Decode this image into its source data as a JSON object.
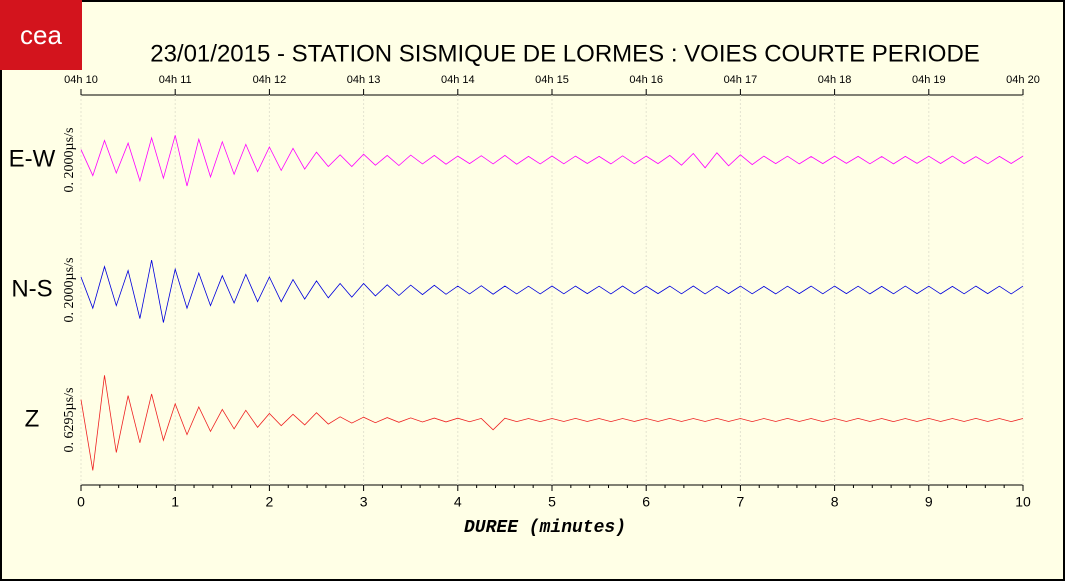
{
  "logo": "cea",
  "chart_data": {
    "type": "seismogram",
    "title": "23/01/2015  -  STATION SISMIQUE DE LORMES : VOIES COURTE PERIODE",
    "xlabel": "DUREE (minutes)",
    "xlim": [
      0,
      10
    ],
    "xticks": [
      0,
      1,
      2,
      3,
      4,
      5,
      6,
      7,
      8,
      9,
      10
    ],
    "x2ticks": [
      {
        "value": 0,
        "label": "04h 10"
      },
      {
        "value": 1,
        "label": "04h 11"
      },
      {
        "value": 2,
        "label": "04h 12"
      },
      {
        "value": 3,
        "label": "04h 13"
      },
      {
        "value": 4,
        "label": "04h 14"
      },
      {
        "value": 5,
        "label": "04h 15"
      },
      {
        "value": 6,
        "label": "04h 16"
      },
      {
        "value": 7,
        "label": "04h 17"
      },
      {
        "value": 8,
        "label": "04h 18"
      },
      {
        "value": 9,
        "label": "04h 19"
      },
      {
        "value": 10,
        "label": "04h 20"
      }
    ],
    "grid": true,
    "x": [
      0,
      0.125,
      0.25,
      0.375,
      0.5,
      0.625,
      0.75,
      0.875,
      1,
      1.125,
      1.25,
      1.375,
      1.5,
      1.625,
      1.75,
      1.875,
      2,
      2.125,
      2.25,
      2.375,
      2.5,
      2.625,
      2.75,
      2.875,
      3,
      3.125,
      3.25,
      3.375,
      3.5,
      3.625,
      3.75,
      3.875,
      4,
      4.125,
      4.25,
      4.375,
      4.5,
      4.625,
      4.75,
      4.875,
      5,
      5.125,
      5.25,
      5.375,
      5.5,
      5.625,
      5.75,
      5.875,
      6,
      6.125,
      6.25,
      6.375,
      6.5,
      6.625,
      6.75,
      6.875,
      7,
      7.125,
      7.25,
      7.375,
      7.5,
      7.625,
      7.75,
      7.875,
      8,
      8.125,
      8.25,
      8.375,
      8.5,
      8.625,
      8.75,
      8.875,
      9,
      9.125,
      9.25,
      9.375,
      9.5,
      9.625,
      9.75,
      9.875,
      10
    ],
    "series": [
      {
        "name": "E-W",
        "scale_label": "0. 2000µs/s",
        "color": "#ff00ff",
        "ylim": [
          -5000,
          5000
        ],
        "values": [
          800,
          -1200,
          1500,
          -1000,
          1300,
          -1600,
          1700,
          -1400,
          1900,
          -2000,
          1600,
          -1300,
          1400,
          -1100,
          1200,
          -900,
          1000,
          -800,
          900,
          -700,
          600,
          -500,
          400,
          -500,
          450,
          -400,
          350,
          -420,
          380,
          -300,
          350,
          -320,
          300,
          -280,
          330,
          -300,
          350,
          -320,
          280,
          -300,
          310,
          -290,
          300,
          -270,
          280,
          -300,
          320,
          -290,
          300,
          -280,
          350,
          -400,
          500,
          -600,
          550,
          -450,
          400,
          -350,
          300,
          -280,
          290,
          -300,
          270,
          -280,
          300,
          -260,
          280,
          -290,
          270,
          -300,
          280,
          -260,
          290,
          -270,
          300,
          -280,
          260,
          -290,
          280,
          -270,
          300
        ]
      },
      {
        "name": "N-S",
        "scale_label": "0. 2000µs/s",
        "color": "#0000dd",
        "ylim": [
          -5000,
          5000
        ],
        "values": [
          1000,
          -1400,
          1800,
          -1200,
          1500,
          -2200,
          2300,
          -2500,
          1600,
          -1400,
          1300,
          -1200,
          1100,
          -1000,
          1200,
          -900,
          1000,
          -900,
          800,
          -700,
          700,
          -600,
          500,
          -550,
          500,
          -450,
          400,
          -420,
          380,
          -350,
          360,
          -330,
          300,
          -300,
          330,
          -320,
          310,
          -300,
          290,
          -300,
          310,
          -290,
          300,
          -280,
          290,
          -300,
          310,
          -290,
          300,
          -280,
          300,
          -290,
          310,
          -300,
          290,
          -280,
          300,
          -290,
          280,
          -300,
          290,
          -280,
          300,
          -290,
          300,
          -280,
          290,
          -300,
          280,
          -290,
          300,
          -280,
          290,
          -300,
          280,
          -290,
          300,
          -280,
          290,
          -300,
          300
        ]
      },
      {
        "name": "Z",
        "scale_label": "0. 6295µs/s",
        "color": "#ee2222",
        "ylim": [
          -8000,
          8000
        ],
        "values": [
          2500,
          -6200,
          5500,
          -4000,
          3000,
          -2800,
          3200,
          -2500,
          2000,
          -1800,
          1600,
          -1400,
          1300,
          -1100,
          1200,
          -900,
          800,
          -700,
          700,
          -600,
          900,
          -500,
          400,
          -380,
          350,
          -330,
          300,
          -280,
          260,
          -250,
          240,
          -230,
          220,
          -210,
          200,
          -1200,
          220,
          -200,
          190,
          -200,
          190,
          -180,
          200,
          -190,
          180,
          -200,
          190,
          -180,
          190,
          -180,
          200,
          -190,
          180,
          -190,
          200,
          -180,
          190,
          -200,
          180,
          -190,
          200,
          -180,
          190,
          -200,
          180,
          -190,
          200,
          -180,
          190,
          -200,
          190,
          -180,
          200,
          -190,
          180,
          -190,
          200,
          -180,
          190,
          -200,
          190
        ]
      }
    ]
  }
}
